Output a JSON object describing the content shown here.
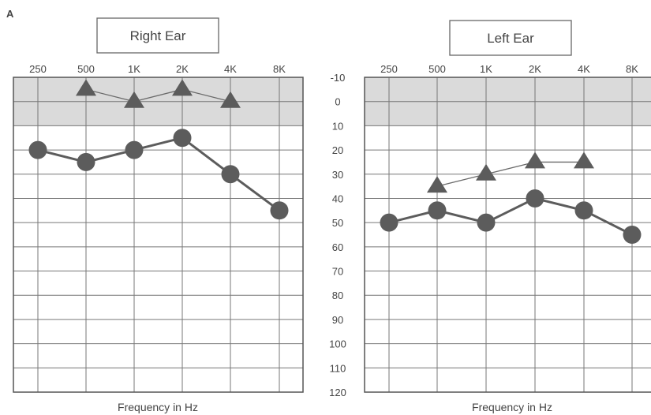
{
  "figure": {
    "panel_label": "A"
  },
  "chart_data": [
    {
      "type": "line",
      "title": "Right Ear",
      "xlabel": "Frequency in Hz",
      "ylabel": "",
      "categories": [
        "250",
        "500",
        "1K",
        "2K",
        "4K",
        "8K"
      ],
      "ylim": [
        -10,
        120
      ],
      "y_inverted": true,
      "shaded_band": [
        -10,
        10
      ],
      "grid": true,
      "series": [
        {
          "marker": "triangle",
          "values": [
            null,
            -5,
            0,
            -5,
            0,
            null
          ]
        },
        {
          "marker": "circle",
          "values": [
            20,
            25,
            20,
            15,
            30,
            45
          ]
        }
      ]
    },
    {
      "type": "line",
      "title": "Left Ear",
      "xlabel": "Frequency in Hz",
      "ylabel": "",
      "categories": [
        "250",
        "500",
        "1K",
        "2K",
        "4K",
        "8K"
      ],
      "y_ticks": [
        "-10",
        "0",
        "10",
        "20",
        "30",
        "40",
        "50",
        "60",
        "70",
        "80",
        "90",
        "100",
        "110",
        "120"
      ],
      "ylim": [
        -10,
        120
      ],
      "y_inverted": true,
      "shaded_band": [
        -10,
        10
      ],
      "grid": true,
      "series": [
        {
          "marker": "triangle",
          "values": [
            null,
            35,
            30,
            25,
            25,
            null
          ]
        },
        {
          "marker": "circle",
          "values": [
            50,
            45,
            50,
            40,
            45,
            55
          ]
        }
      ]
    }
  ]
}
